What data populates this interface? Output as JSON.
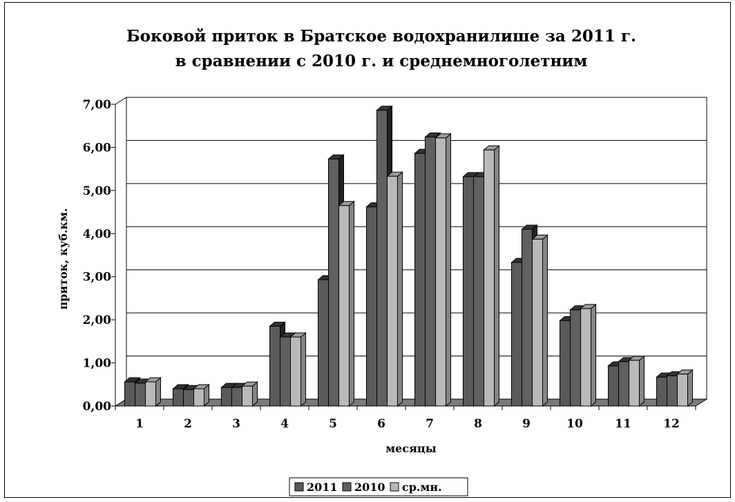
{
  "chart_data": {
    "type": "bar",
    "title_line1": "Боковой приток в Братское водохранилише за 2011 г.",
    "title_line2": "в сравнении с 2010 г. и среднемноголетним",
    "xlabel": "месяцы",
    "ylabel": "приток, куб.км.",
    "ylim": [
      0,
      7
    ],
    "yticks": [
      "0,00",
      "1,00",
      "2,00",
      "3,00",
      "4,00",
      "5,00",
      "6,00",
      "7,00"
    ],
    "categories": [
      "1",
      "2",
      "3",
      "4",
      "5",
      "6",
      "7",
      "8",
      "9",
      "10",
      "11",
      "12"
    ],
    "grid": true,
    "legend_position": "bottom",
    "series": [
      {
        "name": "2011",
        "color": "#5a5a5a",
        "values": [
          0.56,
          0.4,
          0.43,
          1.85,
          2.93,
          4.62,
          5.86,
          5.32,
          3.33,
          1.98,
          0.93,
          0.67
        ]
      },
      {
        "name": "2010",
        "color": "#606060",
        "values": [
          0.53,
          0.38,
          0.43,
          1.6,
          5.73,
          6.86,
          6.24,
          5.32,
          4.1,
          2.23,
          1.03,
          0.7
        ]
      },
      {
        "name": "ср.мн.",
        "color": "#b9b9b9",
        "values": [
          0.56,
          0.4,
          0.46,
          1.6,
          4.65,
          5.33,
          6.22,
          5.94,
          3.87,
          2.26,
          1.06,
          0.74
        ]
      }
    ]
  }
}
